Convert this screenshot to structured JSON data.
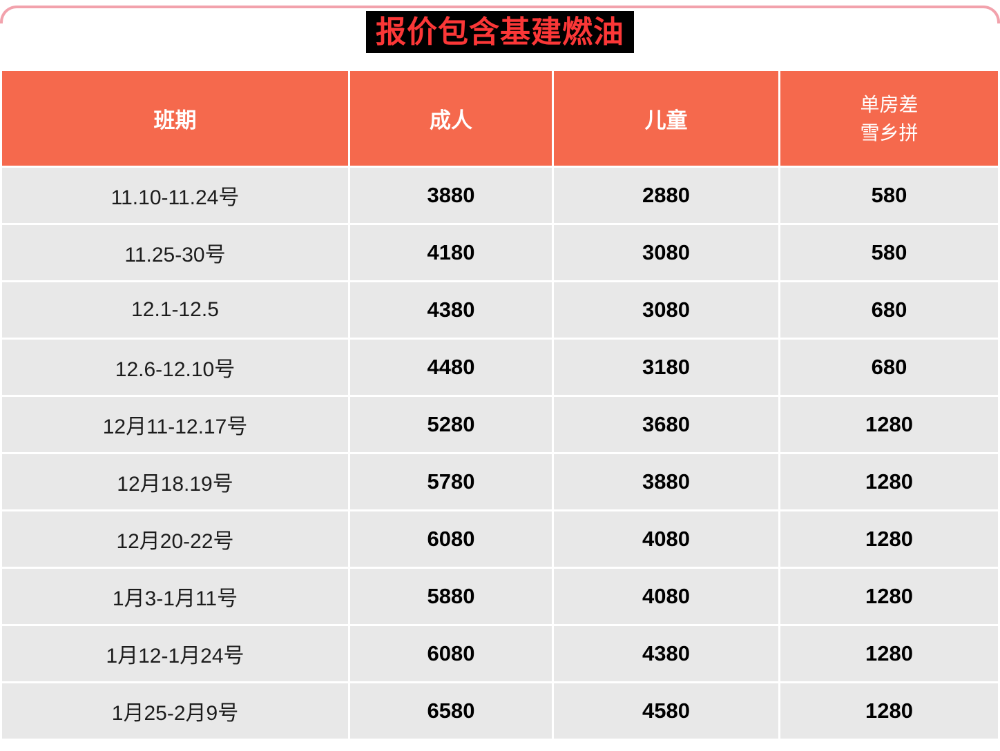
{
  "page": {
    "title": "报价包含基建燃油",
    "colors": {
      "top_border": "#f2a2ac",
      "title_bg": "#000000",
      "title_text": "#fb3737",
      "header_bg": "#f5694d",
      "row_bg": "#e8e8e8"
    }
  },
  "table": {
    "headers": {
      "schedule": "班期",
      "adult": "成人",
      "child": "儿童",
      "single_room_line1": "单房差",
      "single_room_line2": "雪乡拼"
    },
    "rows": [
      {
        "date": "11.10-11.24号",
        "adult": "3880",
        "child": "2880",
        "single": "580"
      },
      {
        "date": "11.25-30号",
        "adult": "4180",
        "child": "3080",
        "single": "580"
      },
      {
        "date": "12.1-12.5",
        "adult": "4380",
        "child": "3080",
        "single": "680"
      },
      {
        "date": "12.6-12.10号",
        "adult": "4480",
        "child": "3180",
        "single": "680"
      },
      {
        "date": "12月11-12.17号",
        "adult": "5280",
        "child": "3680",
        "single": "1280"
      },
      {
        "date": "12月18.19号",
        "adult": "5780",
        "child": "3880",
        "single": "1280"
      },
      {
        "date": "12月20-22号",
        "adult": "6080",
        "child": "4080",
        "single": "1280"
      },
      {
        "date": "1月3-1月11号",
        "adult": "5880",
        "child": "4080",
        "single": "1280"
      },
      {
        "date": "1月12-1月24号",
        "adult": "6080",
        "child": "4380",
        "single": "1280"
      },
      {
        "date": "1月25-2月9号",
        "adult": "6580",
        "child": "4580",
        "single": "1280"
      }
    ]
  }
}
